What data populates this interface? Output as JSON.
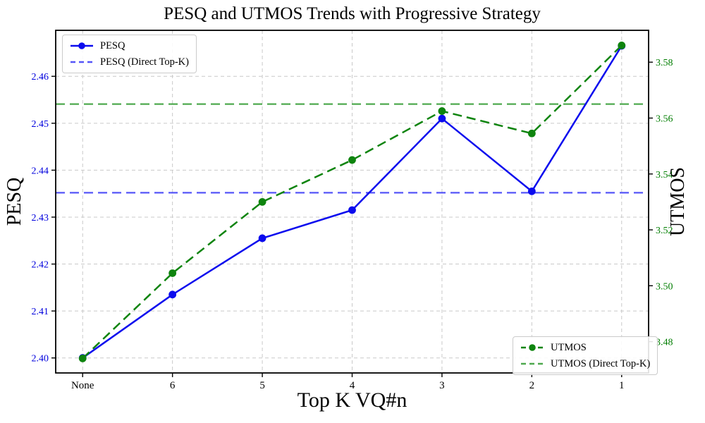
{
  "chart_data": {
    "type": "line",
    "title": "PESQ and UTMOS Trends with Progressive Strategy",
    "xlabel": "Top K VQ#n",
    "categories": [
      "None",
      "6",
      "5",
      "4",
      "3",
      "2",
      "1"
    ],
    "grid": {
      "show": true,
      "color": "#c9c9c9"
    },
    "left_axis": {
      "label": "PESQ",
      "color": "#0000dd",
      "tick_labels": [
        "2.40",
        "2.41",
        "2.42",
        "2.43",
        "2.44",
        "2.45",
        "2.46"
      ],
      "range": [
        2.3968,
        2.4698
      ]
    },
    "right_axis": {
      "label": "UTMOS",
      "color": "#007d00",
      "tick_labels": [
        "3.48",
        "3.50",
        "3.52",
        "3.54",
        "3.56",
        "3.58"
      ],
      "range": [
        3.4688,
        3.5914
      ]
    },
    "series": [
      {
        "name": "PESQ",
        "axis": "left",
        "color": "#0b0bee",
        "line": "solid",
        "marker": "circle",
        "values": [
          2.4,
          2.4135,
          2.4255,
          2.4315,
          2.451,
          2.4355,
          2.4665
        ]
      },
      {
        "name": "UTMOS",
        "axis": "right",
        "color": "#0e840e",
        "line": "dashed",
        "marker": "circle",
        "values": [
          3.474,
          3.5045,
          3.53,
          3.545,
          3.5625,
          3.5545,
          3.586
        ]
      }
    ],
    "reference_lines": [
      {
        "name": "PESQ (Direct Top-K)",
        "axis": "left",
        "value": 2.4352,
        "line": "dashed",
        "color": "rgba(20,20,245,0.72)"
      },
      {
        "name": "UTMOS (Direct Top-K)",
        "axis": "right",
        "value": 3.565,
        "line": "dashed",
        "color": "rgba(20,140,20,0.75)"
      }
    ],
    "legend_top_left": {
      "entries": [
        {
          "label": "PESQ",
          "swatch": {
            "color": "#0b0bee",
            "dash": false,
            "marker": true
          }
        },
        {
          "label": "PESQ (Direct Top-K)",
          "swatch": {
            "color": "rgba(20,20,245,0.72)",
            "dash": true,
            "marker": false
          }
        }
      ]
    },
    "legend_bottom_right": {
      "entries": [
        {
          "label": "UTMOS",
          "swatch": {
            "color": "#0e840e",
            "dash": true,
            "marker": true
          }
        },
        {
          "label": "UTMOS (Direct Top-K)",
          "swatch": {
            "color": "rgba(20,140,20,0.75)",
            "dash": true,
            "marker": false
          }
        }
      ]
    }
  }
}
